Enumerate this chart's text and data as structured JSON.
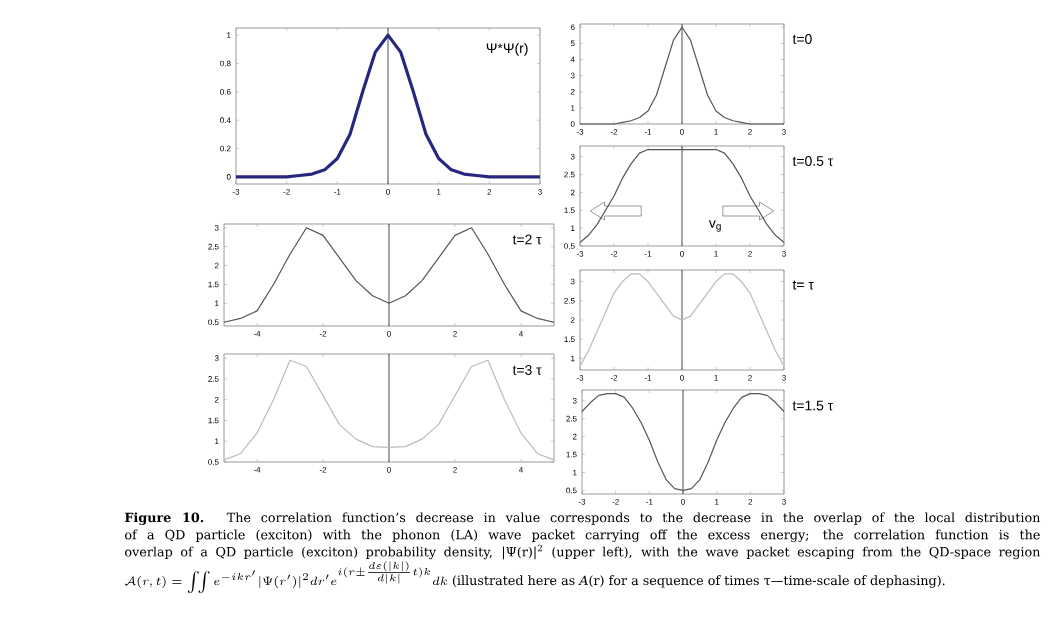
{
  "chart_data": [
    {
      "type": "line",
      "xlim": [
        -3,
        3
      ],
      "xticks": [
        -3,
        -2,
        -1,
        0,
        1,
        2,
        3
      ],
      "ylim": [
        -0.05,
        1.05
      ],
      "yticks": [
        0,
        0.2,
        0.4,
        0.6,
        0.8,
        1
      ],
      "color": "#27277f",
      "annotations": [
        "Ψ*Ψ(r)"
      ],
      "ref_lines": [
        {
          "axis": "x",
          "value": 0
        }
      ],
      "x": [
        -3,
        -2.75,
        -2.5,
        -2.25,
        -2,
        -1.75,
        -1.5,
        -1.25,
        -1,
        -0.75,
        -0.5,
        -0.25,
        0,
        0.25,
        0.5,
        0.75,
        1,
        1.25,
        1.5,
        1.75,
        2,
        2.25,
        2.5,
        2.75,
        3
      ],
      "values": [
        0,
        0,
        0,
        0,
        0,
        0.01,
        0.02,
        0.05,
        0.13,
        0.3,
        0.6,
        0.88,
        1,
        0.88,
        0.6,
        0.3,
        0.13,
        0.05,
        0.02,
        0.01,
        0,
        0,
        0,
        0,
        0
      ]
    },
    {
      "type": "line",
      "xlim": [
        -3,
        3
      ],
      "xticks": [
        -3,
        -2,
        -1,
        0,
        1,
        2,
        3
      ],
      "ylim": [
        0,
        6.2
      ],
      "yticks": [
        0,
        1,
        2,
        3,
        4,
        5,
        6
      ],
      "color": "#555555",
      "annotations": [
        "t=0"
      ],
      "ref_lines": [
        {
          "axis": "x",
          "value": 0
        }
      ],
      "x": [
        -3,
        -2.75,
        -2.5,
        -2.25,
        -2,
        -1.75,
        -1.5,
        -1.25,
        -1,
        -0.75,
        -0.5,
        -0.25,
        0,
        0.25,
        0.5,
        0.75,
        1,
        1.25,
        1.5,
        1.75,
        2,
        2.25,
        2.5,
        2.75,
        3
      ],
      "values": [
        0,
        0,
        0,
        0,
        0,
        0.1,
        0.2,
        0.4,
        0.8,
        1.8,
        3.5,
        5.2,
        6,
        5.2,
        3.5,
        1.8,
        0.8,
        0.4,
        0.2,
        0.1,
        0,
        0,
        0,
        0,
        0
      ]
    },
    {
      "type": "line",
      "xlim": [
        -3,
        3
      ],
      "xticks": [
        -3,
        -2,
        -1,
        0,
        1,
        2,
        3
      ],
      "ylim": [
        0.5,
        3.3
      ],
      "yticks": [
        0.5,
        1,
        1.5,
        2,
        2.5,
        3
      ],
      "color": "#555555",
      "annotations": [
        "t=0.5 τ",
        "v$_{g}$"
      ],
      "ref_lines": [
        {
          "axis": "x",
          "value": 0
        }
      ],
      "x": [
        -3,
        -2.75,
        -2.5,
        -2.25,
        -2,
        -1.75,
        -1.5,
        -1.25,
        -1,
        -0.75,
        -0.5,
        -0.25,
        0,
        0.25,
        0.5,
        0.75,
        1,
        1.25,
        1.5,
        1.75,
        2,
        2.25,
        2.5,
        2.75,
        3
      ],
      "values": [
        0.6,
        0.8,
        1.1,
        1.5,
        1.9,
        2.4,
        2.8,
        3.1,
        3.2,
        3.2,
        3.2,
        3.2,
        3.2,
        3.2,
        3.2,
        3.2,
        3.2,
        3.1,
        2.8,
        2.4,
        1.9,
        1.5,
        1.1,
        0.8,
        0.6
      ]
    },
    {
      "type": "line",
      "xlim": [
        -3,
        3
      ],
      "xticks": [
        -3,
        -2,
        -1,
        0,
        1,
        2,
        3
      ],
      "ylim": [
        0.7,
        3.3
      ],
      "yticks": [
        1,
        1.5,
        2,
        2.5,
        3
      ],
      "color": "#bbbbbb",
      "annotations": [
        "t= τ"
      ],
      "ref_lines": [
        {
          "axis": "x",
          "value": 0
        }
      ],
      "x": [
        -3,
        -2.75,
        -2.5,
        -2.25,
        -2,
        -1.75,
        -1.5,
        -1.25,
        -1,
        -0.75,
        -0.5,
        -0.25,
        0,
        0.25,
        0.5,
        0.75,
        1,
        1.25,
        1.5,
        1.75,
        2,
        2.25,
        2.5,
        2.75,
        3
      ],
      "values": [
        0.8,
        1.2,
        1.7,
        2.2,
        2.7,
        3,
        3.2,
        3.2,
        3,
        2.7,
        2.4,
        2.1,
        2,
        2.1,
        2.4,
        2.7,
        3,
        3.2,
        3.2,
        3,
        2.7,
        2.2,
        1.7,
        1.2,
        0.8
      ]
    },
    {
      "type": "line",
      "xlim": [
        -3,
        3
      ],
      "xticks": [
        -3,
        -2,
        -1,
        0,
        1,
        2,
        3
      ],
      "ylim": [
        0.4,
        3.3
      ],
      "yticks": [
        0.5,
        1,
        1.5,
        2,
        2.5,
        3
      ],
      "color": "#555555",
      "annotations": [
        "t=1.5 τ"
      ],
      "ref_lines": [
        {
          "axis": "x",
          "value": 0
        }
      ],
      "x": [
        -3,
        -2.75,
        -2.5,
        -2.25,
        -2,
        -1.75,
        -1.5,
        -1.25,
        -1,
        -0.75,
        -0.5,
        -0.25,
        0,
        0.25,
        0.5,
        0.75,
        1,
        1.25,
        1.5,
        1.75,
        2,
        2.25,
        2.5,
        2.75,
        3
      ],
      "values": [
        2.7,
        2.95,
        3.15,
        3.2,
        3.2,
        3.1,
        2.8,
        2.4,
        1.9,
        1.3,
        0.8,
        0.55,
        0.5,
        0.55,
        0.8,
        1.3,
        1.9,
        2.4,
        2.8,
        3.1,
        3.2,
        3.2,
        3.15,
        2.95,
        2.7
      ]
    },
    {
      "type": "line",
      "xlim": [
        -5,
        5
      ],
      "xticks": [
        -4,
        -2,
        0,
        2,
        4
      ],
      "ylim": [
        0.4,
        3.1
      ],
      "yticks": [
        0.5,
        1,
        1.5,
        2,
        2.5,
        3
      ],
      "color": "#555555",
      "annotations": [
        "t=2 τ"
      ],
      "ref_lines": [
        {
          "axis": "x",
          "value": 0
        }
      ],
      "x": [
        -5,
        -4.5,
        -4,
        -3.5,
        -3,
        -2.5,
        -2,
        -1.5,
        -1,
        -0.5,
        0,
        0.5,
        1,
        1.5,
        2,
        2.5,
        3,
        3.5,
        4,
        4.5,
        5
      ],
      "values": [
        0.5,
        0.6,
        0.8,
        1.5,
        2.3,
        3,
        2.8,
        2.2,
        1.6,
        1.2,
        1,
        1.2,
        1.6,
        2.2,
        2.8,
        3,
        2.3,
        1.5,
        0.8,
        0.6,
        0.5
      ]
    },
    {
      "type": "line",
      "xlim": [
        -5,
        5
      ],
      "xticks": [
        -4,
        -2,
        0,
        2,
        4
      ],
      "ylim": [
        0.5,
        3.1
      ],
      "yticks": [
        0.5,
        1,
        1.5,
        2,
        2.5,
        3
      ],
      "color": "#bbbbbb",
      "annotations": [
        "t=3 τ"
      ],
      "ref_lines": [
        {
          "axis": "x",
          "value": 0
        }
      ],
      "x": [
        -5,
        -4.5,
        -4,
        -3.5,
        -3,
        -2.5,
        -2,
        -1.5,
        -1,
        -0.5,
        0,
        0.5,
        1,
        1.5,
        2,
        2.5,
        3,
        3.5,
        4,
        4.5,
        5
      ],
      "values": [
        0.55,
        0.7,
        1.2,
        2,
        2.95,
        2.8,
        2.1,
        1.4,
        1.05,
        0.87,
        0.85,
        0.87,
        1.05,
        1.4,
        2.1,
        2.8,
        2.95,
        2,
        1.2,
        0.7,
        0.55
      ]
    },
    {
      "type": "other",
      "annotations": [
        "**Figure 10.** The correlation function’s decrease in value corresponds to the decrease in the overlap of the local distribution of a QD particle (exciton) with the phonon (LA) wave packet carrying off the excess energy; the correlation function is the overlap of a QD particle (exciton) probability density, |Ψ(r)|$^{2}$ (upper left), with the wave packet escaping from the QD-space region",
        "\\mathcal{A}(r,t)=\\int\\!\\!\\int e^{-ikr'}|\\Psi(r')|^{2}dr'e^{i(r\\pm\\frac{d\\varepsilon(|k|)}{d|k|}t)k}dk",
        "(illustrated here as *A*(r) for a sequence of times τ—time-scale of dephasing)."
      ]
    }
  ]
}
